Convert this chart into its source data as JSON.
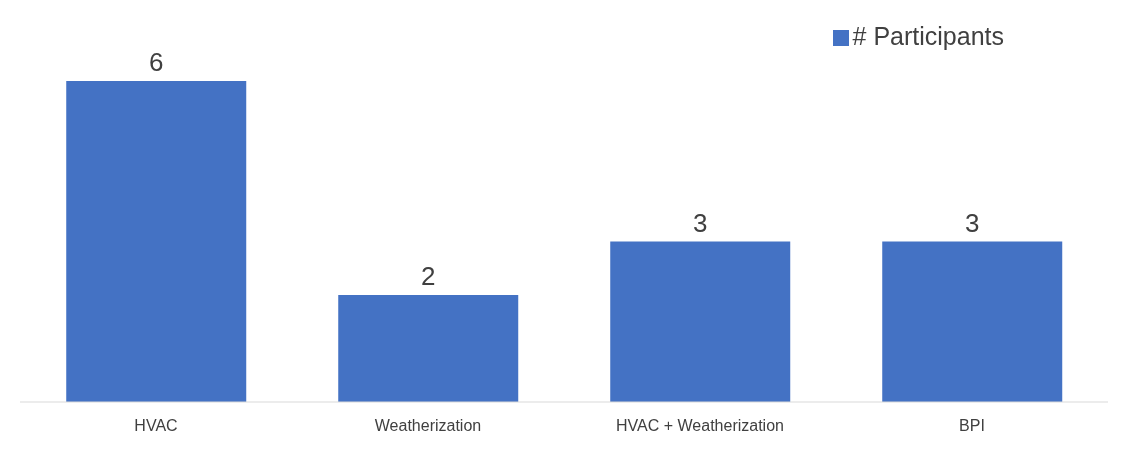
{
  "chart_data": {
    "type": "bar",
    "categories": [
      "HVAC",
      "Weatherization",
      "HVAC + Weatherization",
      "BPI"
    ],
    "series": [
      {
        "name": "# Participants",
        "color": "#4472c4",
        "values": [
          6,
          2,
          3,
          3
        ]
      }
    ],
    "data_labels": true,
    "legend": "top right",
    "grid": false
  }
}
